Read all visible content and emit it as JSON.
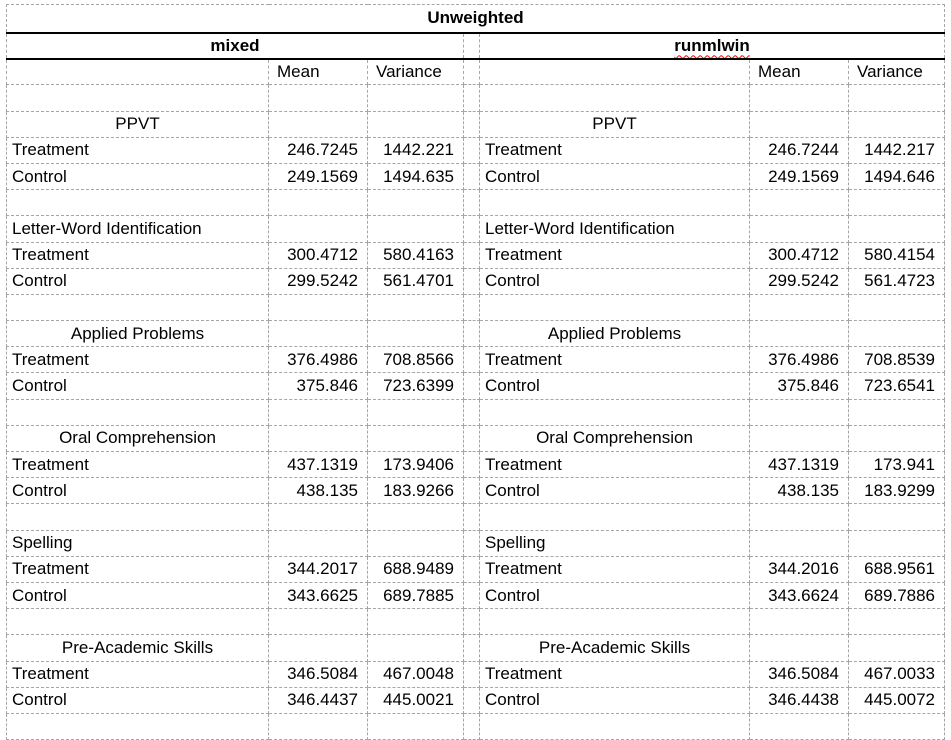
{
  "title": "Unweighted",
  "panels": {
    "left": {
      "name": "mixed"
    },
    "right": {
      "name": "runmlwin"
    }
  },
  "column_headers": {
    "mean": "Mean",
    "variance": "Variance"
  },
  "row_labels": {
    "treatment": "Treatment",
    "control": "Control"
  },
  "spellcheck": {
    "flagged_word": "runmlwin",
    "underline_color": "#ff0000"
  },
  "colors": {
    "grid": "#a6a6a6",
    "header_border": "#000000",
    "background": "#ffffff",
    "text": "#000000"
  },
  "sections": [
    {
      "name": "PPVT",
      "title_align": "center",
      "left": {
        "treatment": {
          "mean": "246.7245",
          "variance": "1442.221"
        },
        "control": {
          "mean": "249.1569",
          "variance": "1494.635"
        }
      },
      "right": {
        "treatment": {
          "mean": "246.7244",
          "variance": "1442.217"
        },
        "control": {
          "mean": "249.1569",
          "variance": "1494.646"
        }
      }
    },
    {
      "name": "Letter-Word Identification",
      "title_align": "left",
      "left": {
        "treatment": {
          "mean": "300.4712",
          "variance": "580.4163"
        },
        "control": {
          "mean": "299.5242",
          "variance": "561.4701"
        }
      },
      "right": {
        "treatment": {
          "mean": "300.4712",
          "variance": "580.4154"
        },
        "control": {
          "mean": "299.5242",
          "variance": "561.4723"
        }
      }
    },
    {
      "name": "Applied Problems",
      "title_align": "center",
      "left": {
        "treatment": {
          "mean": "376.4986",
          "variance": "708.8566"
        },
        "control": {
          "mean": "375.846",
          "variance": "723.6399"
        }
      },
      "right": {
        "treatment": {
          "mean": "376.4986",
          "variance": "708.8539"
        },
        "control": {
          "mean": "375.846",
          "variance": "723.6541"
        }
      }
    },
    {
      "name": "Oral Comprehension",
      "title_align": "center",
      "left": {
        "treatment": {
          "mean": "437.1319",
          "variance": "173.9406"
        },
        "control": {
          "mean": "438.135",
          "variance": "183.9266"
        }
      },
      "right": {
        "treatment": {
          "mean": "437.1319",
          "variance": "173.941"
        },
        "control": {
          "mean": "438.135",
          "variance": "183.9299"
        }
      }
    },
    {
      "name": "Spelling",
      "title_align": "left",
      "left": {
        "treatment": {
          "mean": "344.2017",
          "variance": "688.9489"
        },
        "control": {
          "mean": "343.6625",
          "variance": "689.7885"
        }
      },
      "right": {
        "treatment": {
          "mean": "344.2016",
          "variance": "688.9561"
        },
        "control": {
          "mean": "343.6624",
          "variance": "689.7886"
        }
      }
    },
    {
      "name": "Pre-Academic Skills",
      "title_align": "center",
      "left": {
        "treatment": {
          "mean": "346.5084",
          "variance": "467.0048"
        },
        "control": {
          "mean": "346.4437",
          "variance": "445.0021"
        }
      },
      "right": {
        "treatment": {
          "mean": "346.5084",
          "variance": "467.0033"
        },
        "control": {
          "mean": "346.4438",
          "variance": "445.0072"
        }
      }
    }
  ]
}
